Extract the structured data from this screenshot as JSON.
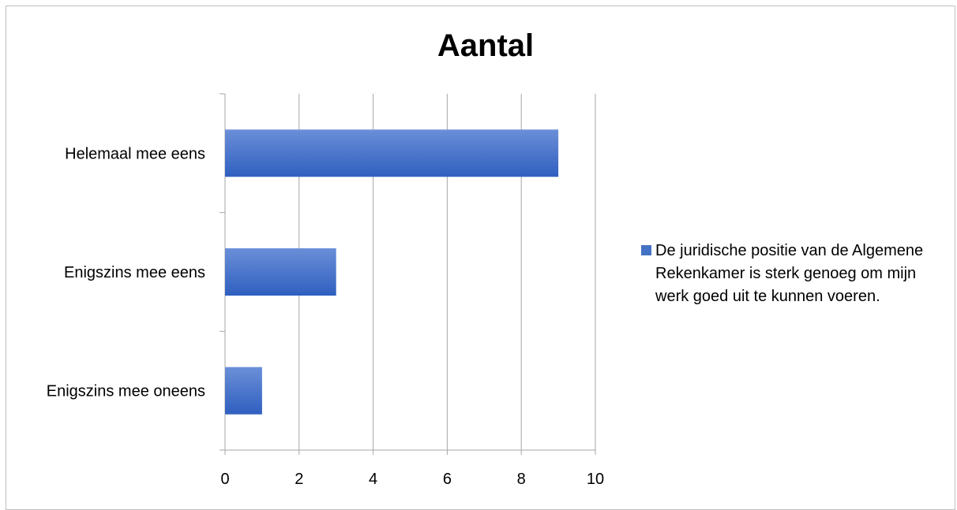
{
  "chart_data": {
    "type": "bar",
    "orientation": "horizontal",
    "title": "Aantal",
    "categories": [
      "Helemaal mee eens",
      "Enigszins mee eens",
      "Enigszins mee oneens"
    ],
    "series": [
      {
        "name": "De juridische positie van de Algemene Rekenkamer is sterk genoeg om mijn werk goed uit te kunnen voeren.",
        "values": [
          9,
          3,
          1
        ],
        "color": "#4472c4"
      }
    ],
    "xlim": [
      0,
      10
    ],
    "xticks": [
      0,
      2,
      4,
      6,
      8,
      10
    ],
    "grid": "vertical",
    "legend_position": "right"
  }
}
